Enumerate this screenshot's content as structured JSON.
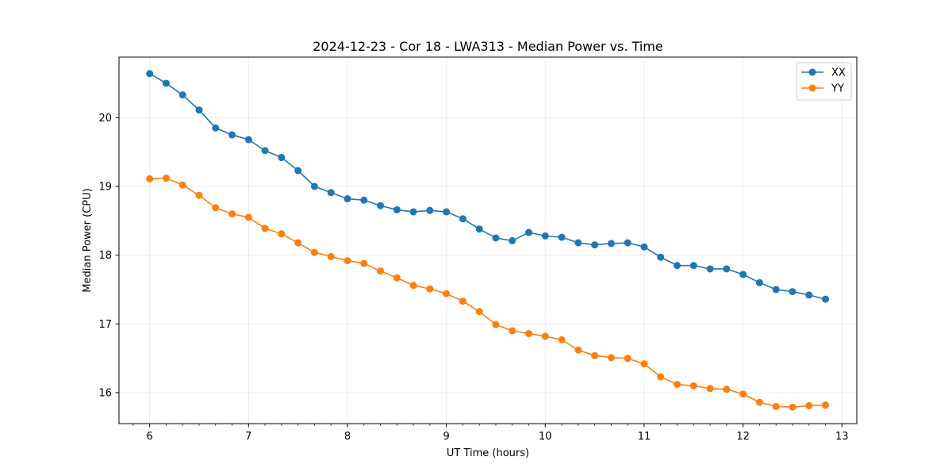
{
  "chart_data": {
    "type": "line",
    "title": "2024-12-23 - Cor 18 - LWA313 - Median Power vs. Time",
    "xlabel": "UT Time (hours)",
    "ylabel": "Median Power (CPU)",
    "xlim": [
      5.69,
      13.15
    ],
    "ylim": [
      15.55,
      20.88
    ],
    "xticks": [
      6,
      7,
      8,
      9,
      10,
      11,
      12,
      13
    ],
    "xtick_labels": [
      "6",
      "7",
      "8",
      "9",
      "10",
      "11",
      "12",
      "13"
    ],
    "yticks": [
      16,
      17,
      18,
      19,
      20
    ],
    "ytick_labels": [
      "16",
      "17",
      "18",
      "19",
      "20"
    ],
    "grid": true,
    "legend_position": "top-right",
    "x": [
      6.0,
      6.1667,
      6.3333,
      6.5,
      6.6667,
      6.8333,
      7.0,
      7.1667,
      7.3333,
      7.5,
      7.6667,
      7.8333,
      8.0,
      8.1667,
      8.3333,
      8.5,
      8.6667,
      8.8333,
      9.0,
      9.1667,
      9.3333,
      9.5,
      9.6667,
      9.8333,
      10.0,
      10.1667,
      10.3333,
      10.5,
      10.6667,
      10.8333,
      11.0,
      11.1667,
      11.3333,
      11.5,
      11.6667,
      11.8333,
      12.0,
      12.1667,
      12.3333,
      12.5,
      12.6667,
      12.8333
    ],
    "series": [
      {
        "name": "XX",
        "color": "#1f77b4",
        "values": [
          20.64,
          20.5,
          20.33,
          20.11,
          19.85,
          19.75,
          19.68,
          19.52,
          19.42,
          19.23,
          19.0,
          18.91,
          18.82,
          18.8,
          18.72,
          18.66,
          18.63,
          18.65,
          18.63,
          18.53,
          18.38,
          18.25,
          18.21,
          18.33,
          18.28,
          18.26,
          18.18,
          18.15,
          18.17,
          18.18,
          18.12,
          17.97,
          17.85,
          17.85,
          17.8,
          17.8,
          17.72,
          17.6,
          17.5,
          17.47,
          17.42,
          17.36
        ]
      },
      {
        "name": "YY",
        "color": "#ff7f0e",
        "values": [
          19.11,
          19.12,
          19.02,
          18.87,
          18.69,
          18.6,
          18.55,
          18.39,
          18.31,
          18.18,
          18.04,
          17.98,
          17.92,
          17.88,
          17.77,
          17.67,
          17.56,
          17.51,
          17.44,
          17.33,
          17.18,
          16.99,
          16.9,
          16.86,
          16.82,
          16.77,
          16.62,
          16.54,
          16.51,
          16.5,
          16.42,
          16.23,
          16.12,
          16.1,
          16.06,
          16.05,
          15.98,
          15.86,
          15.8,
          15.79,
          15.81,
          15.82
        ]
      }
    ]
  }
}
